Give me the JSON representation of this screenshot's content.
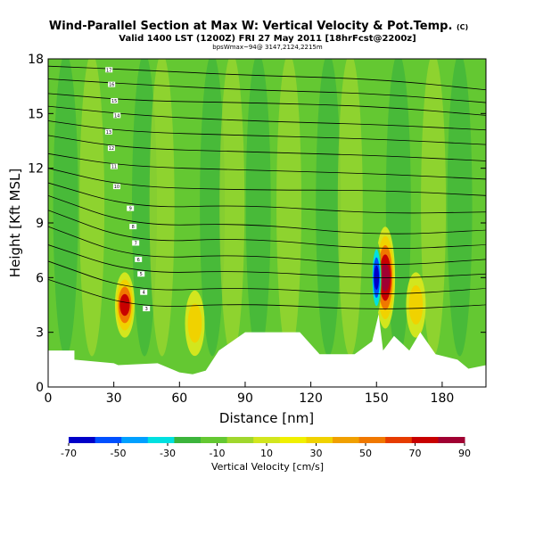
{
  "chart_data": {
    "type": "heatmap",
    "title": "Wind-Parallel Section at Max W: Vertical Velocity & Pot.Temp.",
    "title_mark": "(C)",
    "subtitle": "Valid 1400 LST (1200Z) FRI 27 May 2011 [18hrFcst@2200z]",
    "subsubtitle": "bpsWmax~94@ 3147,2124,2215m",
    "xlabel": "Distance [nm]",
    "ylabel": "Height [Kft MSL]",
    "xlim": [
      0,
      200
    ],
    "ylim": [
      0,
      18
    ],
    "xticks": [
      0,
      30,
      60,
      90,
      120,
      150,
      180
    ],
    "yticks": [
      0,
      3,
      6,
      9,
      12,
      15,
      18
    ],
    "colorbar": {
      "label": "Vertical Velocity [cm/s]",
      "ticks": [
        -70,
        -50,
        -30,
        -10,
        10,
        30,
        50,
        70,
        90
      ],
      "range": [
        -70,
        90
      ],
      "colors": [
        "#0000c8",
        "#0050ff",
        "#00a0ff",
        "#00e0e0",
        "#3cb43c",
        "#64c832",
        "#a0d72d",
        "#d2e61e",
        "#f0f000",
        "#f0d200",
        "#f0a000",
        "#f07800",
        "#e63c00",
        "#c80000",
        "#a00032"
      ]
    },
    "updrafts": [
      {
        "x": 35,
        "z_bottom": 3.0,
        "z_top": 6.0,
        "max_w": 80
      },
      {
        "x": 67,
        "z_bottom": 2.0,
        "z_top": 5.0,
        "max_w": 35
      },
      {
        "x": 154,
        "z_bottom": 3.5,
        "z_top": 8.5,
        "max_w": 90
      },
      {
        "x": 168,
        "z_bottom": 3.0,
        "z_top": 6.0,
        "max_w": 35
      }
    ],
    "downdrafts": [
      {
        "x": 150,
        "z_bottom": 4.0,
        "z_top": 8.0,
        "min_w": -70
      }
    ],
    "terrain": [
      [
        0,
        2
      ],
      [
        12,
        2
      ],
      [
        12,
        1.5
      ],
      [
        30,
        1.3
      ],
      [
        32,
        1.2
      ],
      [
        50,
        1.3
      ],
      [
        60,
        0.8
      ],
      [
        66,
        0.7
      ],
      [
        72,
        0.9
      ],
      [
        78,
        2.0
      ],
      [
        90,
        3.0
      ],
      [
        115,
        3.0
      ],
      [
        124,
        1.8
      ],
      [
        140,
        1.8
      ],
      [
        148,
        2.5
      ],
      [
        151,
        4.0
      ],
      [
        153,
        2.0
      ],
      [
        158,
        2.8
      ],
      [
        165,
        2.0
      ],
      [
        170,
        3.0
      ],
      [
        177,
        1.8
      ],
      [
        187,
        1.5
      ],
      [
        192,
        1.0
      ],
      [
        200,
        1.2
      ]
    ],
    "isentropes": [
      {
        "label": "17",
        "pts": [
          [
            0,
            17.6
          ],
          [
            40,
            17.4
          ],
          [
            90,
            17.1
          ],
          [
            150,
            16.9
          ],
          [
            200,
            16.3
          ]
        ]
      },
      {
        "label": "16",
        "pts": [
          [
            0,
            16.9
          ],
          [
            40,
            16.6
          ],
          [
            90,
            16.3
          ],
          [
            150,
            16.1
          ],
          [
            200,
            15.6
          ]
        ]
      },
      {
        "label": "15",
        "pts": [
          [
            0,
            16.1
          ],
          [
            40,
            15.7
          ],
          [
            90,
            15.6
          ],
          [
            150,
            15.4
          ],
          [
            200,
            14.9
          ]
        ]
      },
      {
        "label": "14",
        "pts": [
          [
            0,
            15.4
          ],
          [
            40,
            14.9
          ],
          [
            90,
            14.6
          ],
          [
            150,
            14.4
          ],
          [
            200,
            14.1
          ]
        ]
      },
      {
        "label": "13",
        "pts": [
          [
            0,
            14.6
          ],
          [
            35,
            14.0
          ],
          [
            90,
            13.8
          ],
          [
            150,
            13.6
          ],
          [
            200,
            13.3
          ]
        ]
      },
      {
        "label": "12",
        "pts": [
          [
            0,
            13.8
          ],
          [
            35,
            13.1
          ],
          [
            90,
            12.9
          ],
          [
            150,
            12.7
          ],
          [
            200,
            12.4
          ]
        ]
      },
      {
        "label": "11",
        "pts": [
          [
            0,
            12.8
          ],
          [
            35,
            12.1
          ],
          [
            90,
            11.9
          ],
          [
            150,
            11.7
          ],
          [
            200,
            11.4
          ]
        ]
      },
      {
        "label": "10",
        "pts": [
          [
            0,
            12.0
          ],
          [
            35,
            11.0
          ],
          [
            90,
            10.8
          ],
          [
            150,
            10.8
          ],
          [
            200,
            10.5
          ]
        ]
      },
      {
        "label": "9",
        "pts": [
          [
            0,
            11.2
          ],
          [
            40,
            9.8
          ],
          [
            90,
            10.0
          ],
          [
            150,
            9.5
          ],
          [
            200,
            9.6
          ]
        ]
      },
      {
        "label": "8",
        "pts": [
          [
            0,
            10.5
          ],
          [
            40,
            8.8
          ],
          [
            90,
            9.0
          ],
          [
            150,
            8.3
          ],
          [
            200,
            8.6
          ]
        ]
      },
      {
        "label": "7",
        "pts": [
          [
            0,
            9.7
          ],
          [
            40,
            7.9
          ],
          [
            90,
            8.2
          ],
          [
            150,
            7.5
          ],
          [
            200,
            7.8
          ]
        ]
      },
      {
        "label": "6",
        "pts": [
          [
            0,
            8.8
          ],
          [
            40,
            7.0
          ],
          [
            90,
            7.3
          ],
          [
            150,
            6.6
          ],
          [
            200,
            7.0
          ]
        ]
      },
      {
        "label": "5",
        "pts": [
          [
            0,
            7.8
          ],
          [
            40,
            6.2
          ],
          [
            90,
            6.4
          ],
          [
            150,
            5.9
          ],
          [
            200,
            6.2
          ]
        ]
      },
      {
        "label": "4",
        "pts": [
          [
            0,
            6.9
          ],
          [
            40,
            5.2
          ],
          [
            90,
            5.5
          ],
          [
            150,
            5.0
          ],
          [
            200,
            5.4
          ]
        ]
      },
      {
        "label": "3",
        "pts": [
          [
            0,
            5.9
          ],
          [
            40,
            4.3
          ],
          [
            90,
            4.6
          ],
          [
            150,
            4.2
          ],
          [
            200,
            4.5
          ]
        ]
      }
    ]
  }
}
